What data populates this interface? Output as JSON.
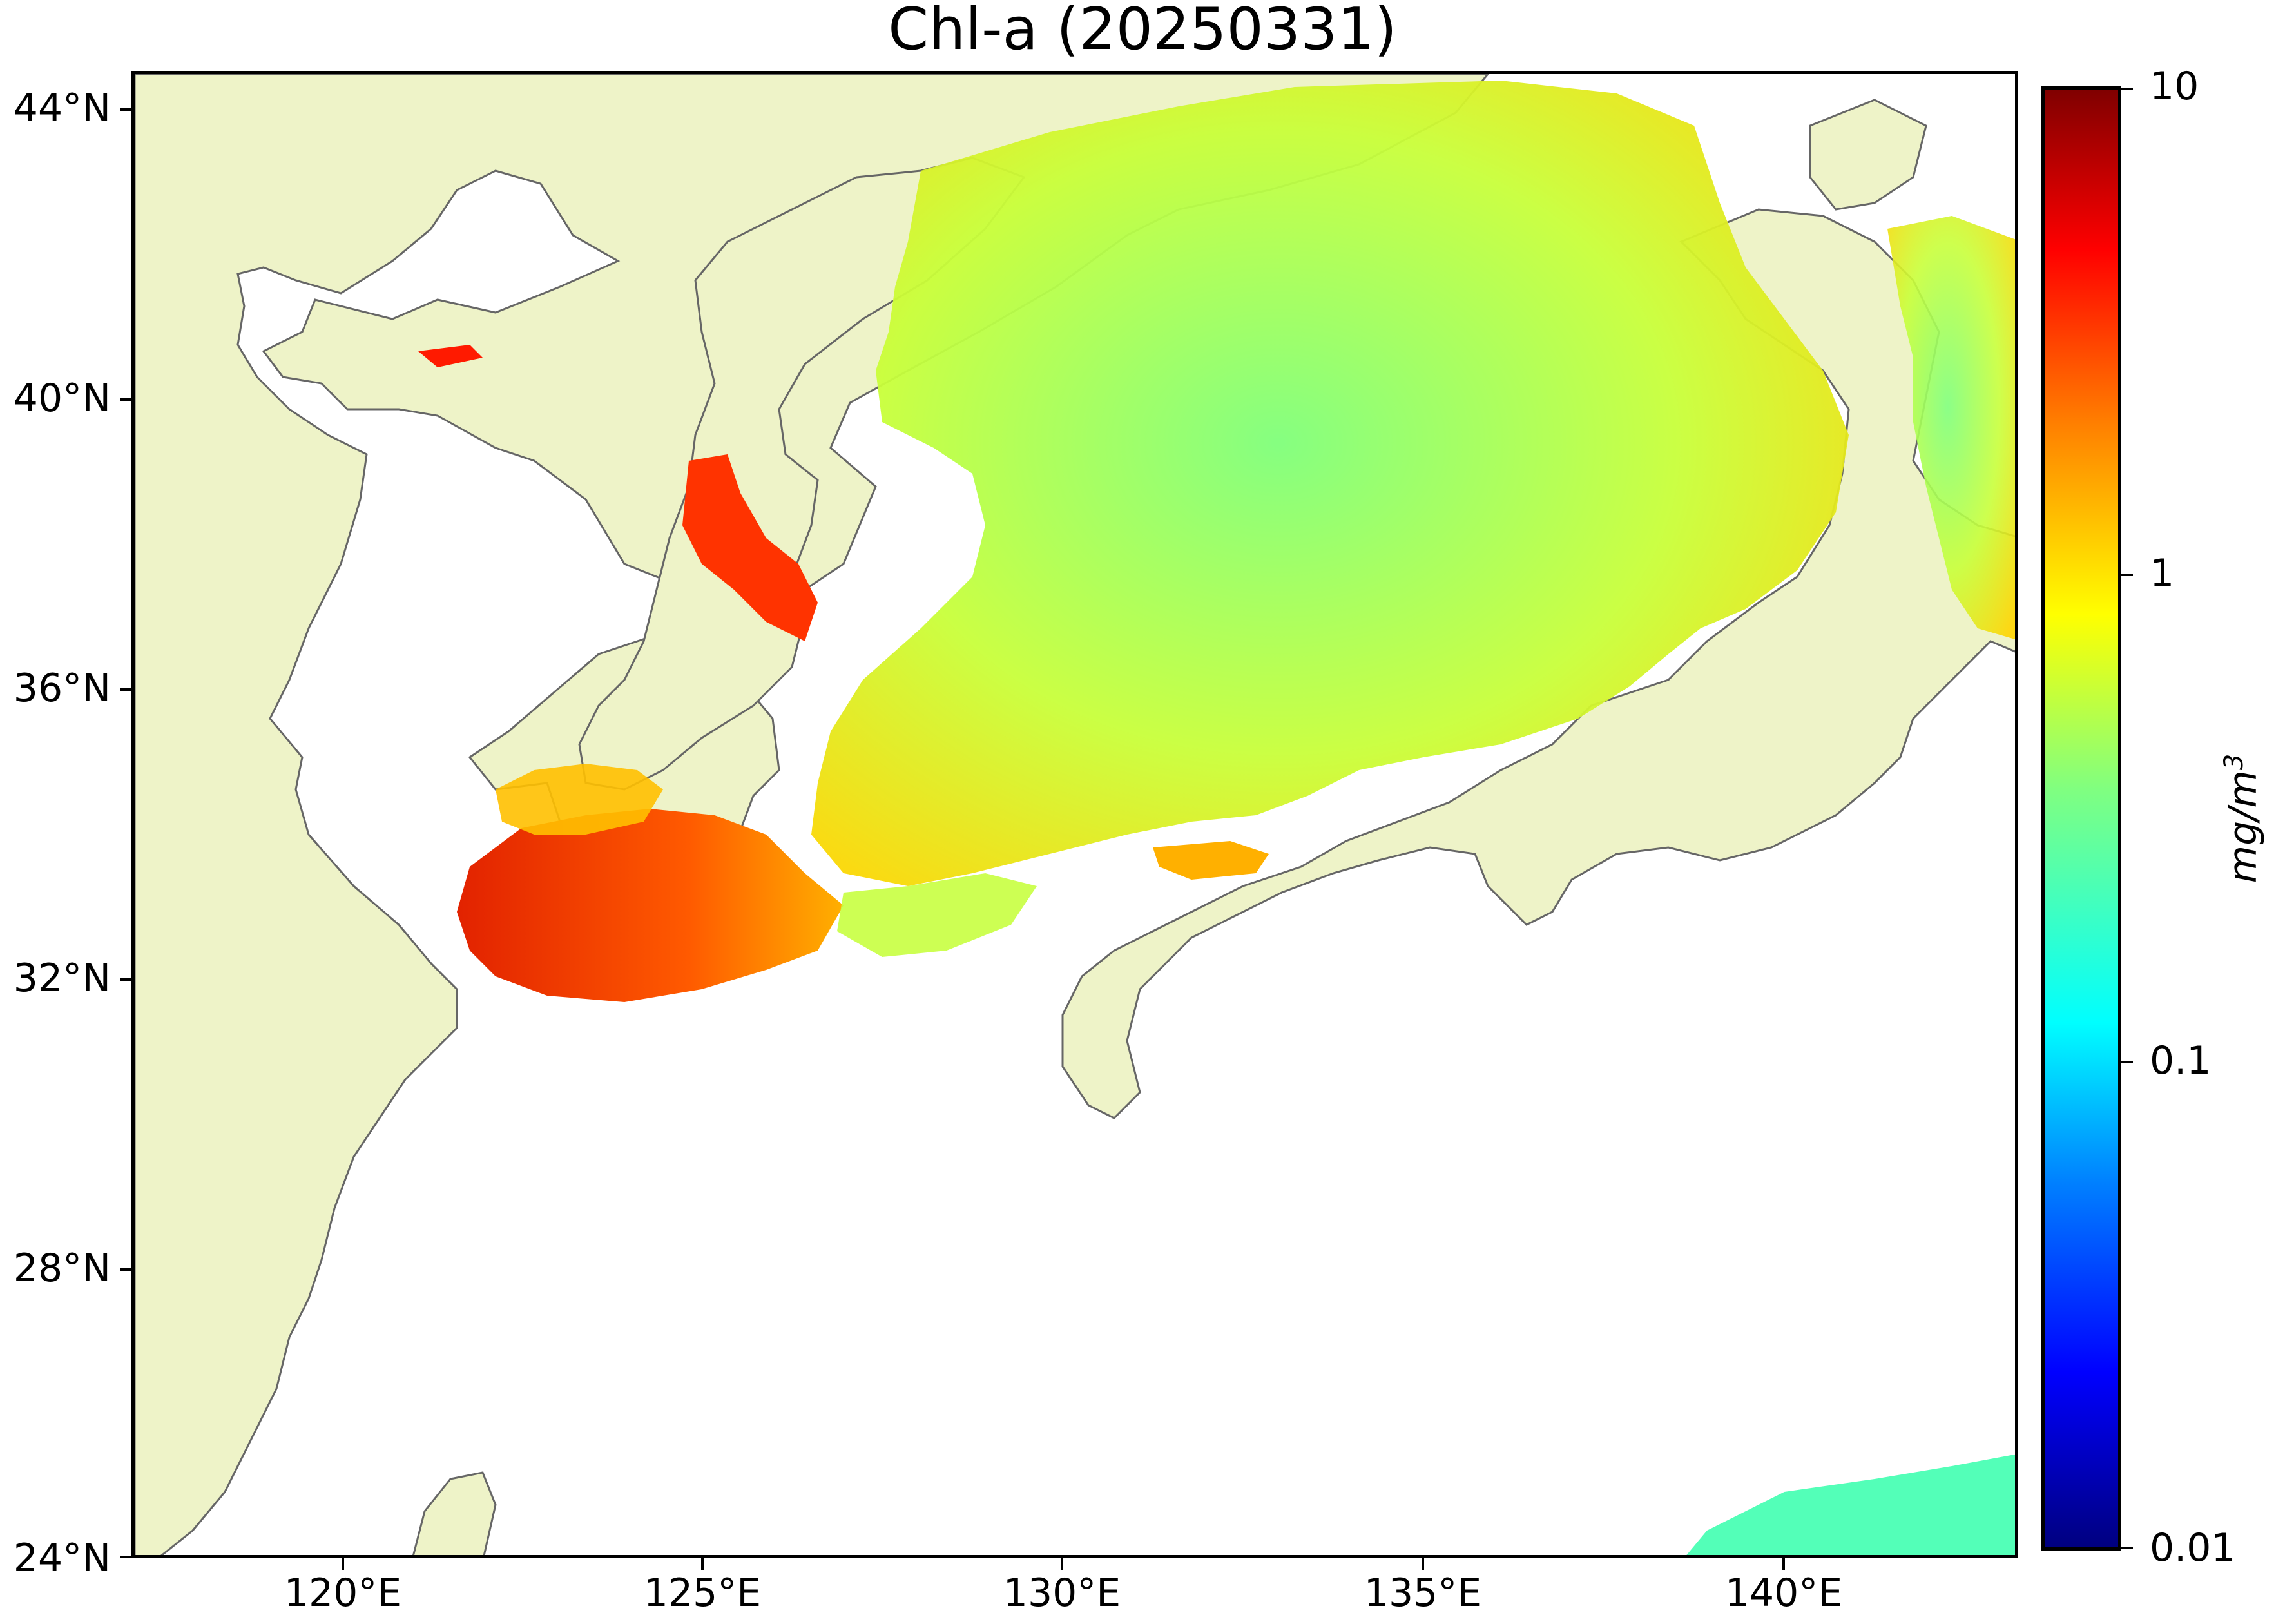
{
  "title": "Chl-a (20250331)",
  "map": {
    "lat_ticks": [
      "44°N",
      "40°N",
      "36°N",
      "32°N",
      "28°N",
      "24°N"
    ],
    "lon_ticks": [
      "120°E",
      "125°E",
      "130°E",
      "135°E",
      "140°E"
    ],
    "lon_range": [
      116.8,
      143.0
    ],
    "lat_range": [
      24.0,
      44.5
    ],
    "land_color": "#eef3c8",
    "coast_color": "#666666",
    "ocean_no_data_color": "#ffffff"
  },
  "colorbar": {
    "labels": [
      "10",
      "1",
      "0.1",
      "0.01"
    ],
    "unit": "mg/m",
    "unit_superscript": "3",
    "scale": "log",
    "range": [
      0.01,
      10
    ],
    "colormap": "jet"
  }
}
